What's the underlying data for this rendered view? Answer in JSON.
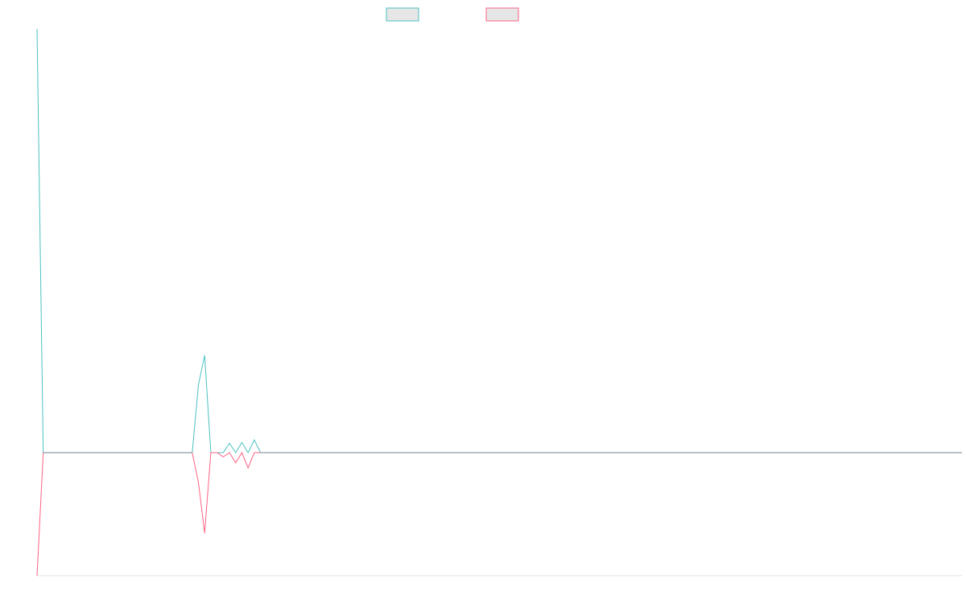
{
  "chart_data": {
    "type": "line",
    "title": "",
    "xlabel": "",
    "ylabel": "",
    "grid": false,
    "legend_placement": "top-center",
    "x_count": 150,
    "ylim": [
      -1,
      1
    ],
    "series": [
      {
        "color": "#4bc0c0",
        "legend_fill": "#e6e6e6",
        "points": [
          [
            0,
            1.0
          ],
          [
            1,
            0.0
          ],
          [
            25,
            0.0
          ],
          [
            26,
            0.16
          ],
          [
            27,
            0.23
          ],
          [
            28,
            0.0
          ],
          [
            29,
            0.0
          ],
          [
            30,
            0.0
          ],
          [
            31,
            0.022
          ],
          [
            32,
            0.0
          ],
          [
            33,
            0.024
          ],
          [
            34,
            0.0
          ],
          [
            35,
            0.03
          ],
          [
            36,
            0.0
          ],
          [
            149,
            0.0
          ]
        ]
      },
      {
        "color": "#ff6384",
        "legend_fill": "#e6e6e6",
        "points": [
          [
            0,
            -0.29
          ],
          [
            1,
            0.0
          ],
          [
            25,
            0.0
          ],
          [
            26,
            -0.07
          ],
          [
            27,
            -0.19
          ],
          [
            28,
            0.0
          ],
          [
            29,
            0.0
          ],
          [
            30,
            -0.01
          ],
          [
            31,
            0.0
          ],
          [
            32,
            -0.024
          ],
          [
            33,
            0.0
          ],
          [
            34,
            -0.036
          ],
          [
            35,
            0.0
          ],
          [
            149,
            0.0
          ]
        ]
      }
    ],
    "baseline_color": "#8c9aa6",
    "axis_color": "#e0e0e0"
  }
}
